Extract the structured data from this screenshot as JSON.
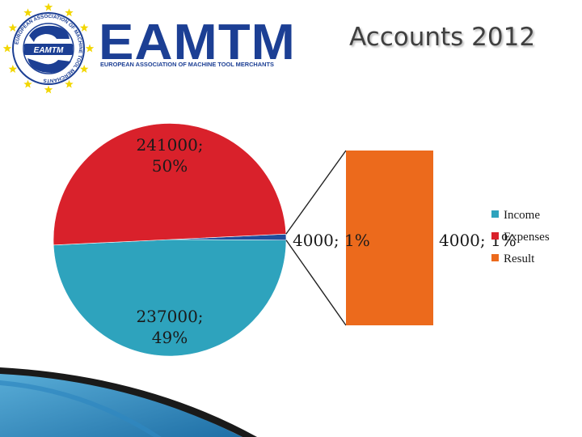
{
  "header": {
    "title": "Accounts 2012",
    "logo": {
      "name": "EAMTM",
      "subtitle": "EUROPEAN ASSOCIATION OF MACHINE TOOL MERCHANTS",
      "seal_text": "EUROPEAN ASSOCIATION OF MACHINE TOOL MERCHANTS",
      "seal_badge": "EAMTM",
      "colors": {
        "blue": "#1c3f94",
        "star": "#f2d600"
      }
    }
  },
  "chart_data": {
    "type": "pie",
    "variant": "pie-of-pie",
    "title": "",
    "slices": [
      {
        "name": "Income",
        "value": 237000,
        "percent": 49,
        "label": "237000;\n49%",
        "color": "#2ea3bd"
      },
      {
        "name": "Expenses",
        "value": 241000,
        "percent": 50,
        "label": "241000;\n50%",
        "color": "#d9212b"
      },
      {
        "name": "Result",
        "value": 4000,
        "percent": 1,
        "label": "4000; 1%",
        "color": "#1f4e9c"
      }
    ],
    "secondary": {
      "type": "stacked-bar",
      "values": [
        {
          "name": "Result",
          "value": 4000,
          "percent": 1,
          "label": "4000; 1%",
          "color": "#ec6a1c"
        }
      ]
    },
    "legend": {
      "position": "right",
      "items": [
        {
          "name": "Income",
          "color": "#2ea3bd"
        },
        {
          "name": "Expenses",
          "color": "#d9212b"
        },
        {
          "name": "Result",
          "color": "#ec6a1c"
        }
      ]
    }
  }
}
